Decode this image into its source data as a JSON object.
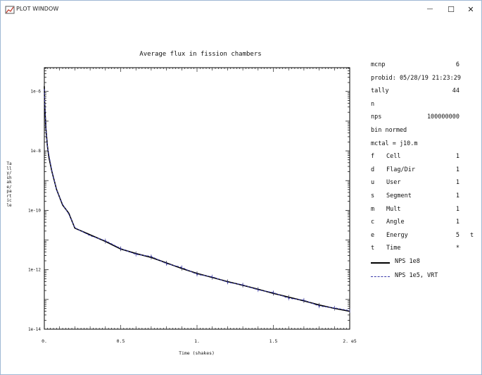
{
  "window": {
    "title": "PLOT WINDOW",
    "minimize_glyph": "—",
    "maximize_glyph": "☐",
    "close_glyph": "✕"
  },
  "chart_data": {
    "type": "line",
    "title": "Average flux in fission chambers",
    "xlabel": "Time (shakes)",
    "ylabel": "Tally/shake/particle",
    "x_ticks": [
      "0.",
      "0.5",
      "1.",
      "1.5",
      "2. e5"
    ],
    "y_ticks": [
      "1e-6",
      "1e-8",
      "1e-10",
      "1e-12",
      "1e-14"
    ],
    "xlim": [
      0,
      200000
    ],
    "ylim_log10": [
      -14,
      -5.2
    ],
    "series": [
      {
        "name": "NPS 1e8",
        "color": "#000000",
        "x": [
          0,
          200,
          500,
          1000,
          2000,
          3000,
          5000,
          8000,
          12000,
          16000,
          20000,
          30000,
          40000,
          50000,
          60000,
          70000,
          80000,
          90000,
          100000,
          110000,
          120000,
          130000,
          140000,
          150000,
          160000,
          170000,
          180000,
          190000,
          200000
        ],
        "y": [
          1.5e-06,
          5e-07,
          2e-07,
          6e-08,
          1.5e-08,
          6e-09,
          2e-09,
          5e-10,
          1.5e-10,
          8e-11,
          2.5e-11,
          1.5e-11,
          9e-12,
          5e-12,
          3.5e-12,
          2.6e-12,
          1.7e-12,
          1.1e-12,
          7.5e-13,
          5.5e-13,
          4e-13,
          3e-13,
          2.2e-13,
          1.6e-13,
          1.2e-13,
          9e-14,
          6.5e-14,
          5e-14,
          4e-14
        ]
      },
      {
        "name": "NPS 1e5, VRT",
        "color": "#3a3aa8",
        "x": [
          0,
          500,
          1000,
          2000,
          5000,
          8000,
          12000,
          16000,
          20000,
          30000,
          40000,
          50000,
          60000,
          70000,
          80000,
          90000,
          100000,
          110000,
          120000,
          130000,
          140000,
          150000,
          160000,
          170000,
          180000,
          190000,
          200000
        ],
        "y": [
          1.2e-06,
          1.9e-07,
          6.2e-08,
          1.4e-08,
          2.1e-09,
          4.8e-10,
          1.6e-10,
          7.5e-11,
          2.6e-11,
          1.4e-11,
          9.5e-12,
          5.2e-12,
          3.3e-12,
          2.8e-12,
          1.6e-12,
          1.2e-12,
          7e-13,
          5.8e-13,
          3.8e-13,
          3.1e-13,
          2.1e-13,
          1.7e-13,
          1.1e-13,
          9.5e-14,
          6e-14,
          5.2e-14,
          4.2e-14
        ]
      }
    ],
    "grid": false
  },
  "info": {
    "lines": [
      {
        "left": "mcnp",
        "right": "6"
      },
      {
        "left": "probid: 05/28/19 21:23:29",
        "right": ""
      },
      {
        "left": "tally",
        "right": "44"
      },
      {
        "left": "n",
        "right": ""
      },
      {
        "left": "nps",
        "right": "100000000"
      },
      {
        "left": "bin normed",
        "right": ""
      },
      {
        "left": "mctal = j10.m",
        "right": ""
      }
    ],
    "bins": [
      {
        "code": "f",
        "name": "Cell",
        "value": "1",
        "extra": ""
      },
      {
        "code": "d",
        "name": "Flag/Dir",
        "value": "1",
        "extra": ""
      },
      {
        "code": "u",
        "name": "User",
        "value": "1",
        "extra": ""
      },
      {
        "code": "s",
        "name": "Segment",
        "value": "1",
        "extra": ""
      },
      {
        "code": "m",
        "name": "Mult",
        "value": "1",
        "extra": ""
      },
      {
        "code": "c",
        "name": "Angle",
        "value": "1",
        "extra": ""
      },
      {
        "code": "e",
        "name": "Energy",
        "value": "5",
        "extra": "t"
      },
      {
        "code": "t",
        "name": "Time",
        "value": "*",
        "extra": ""
      }
    ],
    "legend": [
      "NPS 1e8",
      "NPS 1e5, VRT"
    ]
  }
}
